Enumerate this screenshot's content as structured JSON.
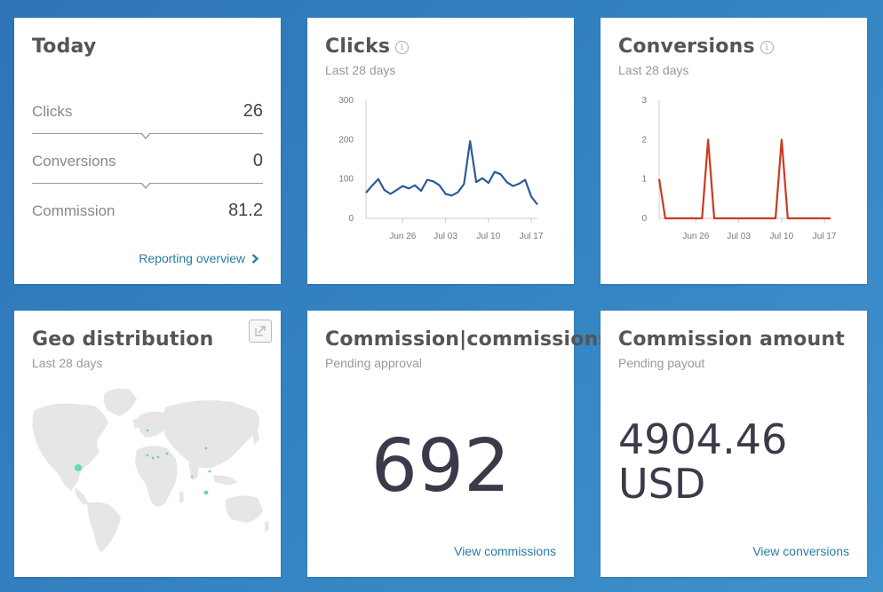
{
  "today": {
    "title": "Today",
    "rows": [
      {
        "label": "Clicks",
        "value": "26"
      },
      {
        "label": "Conversions",
        "value": "0"
      },
      {
        "label": "Commission",
        "value": "81.2"
      }
    ],
    "link": "Reporting overview",
    "link_icon": "chevron-right-icon"
  },
  "clicks": {
    "title": "Clicks",
    "subtitle": "Last 28 days",
    "info_icon": "info-icon"
  },
  "conversions": {
    "title": "Conversions",
    "subtitle": "Last 28 days",
    "info_icon": "info-icon"
  },
  "geo": {
    "title": "Geo distribution",
    "subtitle": "Last 28 days",
    "expand_icon": "expand-icon"
  },
  "commissions": {
    "title": "Commission|commissions",
    "subtitle": "Pending approval",
    "value": "692",
    "link": "View commissions"
  },
  "amount": {
    "title": "Commission amount",
    "subtitle": "Pending payout",
    "value_line1": "4904.46",
    "value_line2": "USD",
    "link": "View conversions"
  },
  "colors": {
    "clicks_line": "#2d5a96",
    "conversions_line": "#cc3a1f",
    "link": "#2a7ba7",
    "map_land": "#e6e6e6",
    "map_dot": "#5fe0a9"
  },
  "chart_data": [
    {
      "type": "line",
      "title": "Clicks",
      "x": [
        "Jun 20",
        "Jun 21",
        "Jun 22",
        "Jun 23",
        "Jun 24",
        "Jun 25",
        "Jun 26",
        "Jun 27",
        "Jun 28",
        "Jun 29",
        "Jun 30",
        "Jul 01",
        "Jul 02",
        "Jul 03",
        "Jul 04",
        "Jul 05",
        "Jul 06",
        "Jul 07",
        "Jul 08",
        "Jul 09",
        "Jul 10",
        "Jul 11",
        "Jul 12",
        "Jul 13",
        "Jul 14",
        "Jul 15",
        "Jul 16",
        "Jul 17",
        "Jul 18"
      ],
      "series": [
        {
          "values": [
            65,
            83,
            100,
            72,
            62,
            72,
            82,
            76,
            84,
            70,
            98,
            94,
            84,
            62,
            58,
            66,
            87,
            196,
            92,
            102,
            90,
            118,
            112,
            92,
            82,
            88,
            98,
            55,
            35
          ]
        }
      ],
      "x_ticks": [
        "Jun 26",
        "Jul 03",
        "Jul 10",
        "Jul 17"
      ],
      "y_ticks": [
        "0",
        "100",
        "200",
        "300"
      ],
      "ylim": [
        0,
        300
      ]
    },
    {
      "type": "line",
      "title": "Conversions",
      "x": [
        "Jun 20",
        "Jun 21",
        "Jun 22",
        "Jun 23",
        "Jun 24",
        "Jun 25",
        "Jun 26",
        "Jun 27",
        "Jun 28",
        "Jun 29",
        "Jun 30",
        "Jul 01",
        "Jul 02",
        "Jul 03",
        "Jul 04",
        "Jul 05",
        "Jul 06",
        "Jul 07",
        "Jul 08",
        "Jul 09",
        "Jul 10",
        "Jul 11",
        "Jul 12",
        "Jul 13",
        "Jul 14",
        "Jul 15",
        "Jul 16",
        "Jul 17",
        "Jul 18"
      ],
      "series": [
        {
          "values": [
            1,
            0,
            0,
            0,
            0,
            0,
            0,
            0,
            2,
            0,
            0,
            0,
            0,
            0,
            0,
            0,
            0,
            0,
            0,
            0,
            2,
            0,
            0,
            0,
            0,
            0,
            0,
            0,
            0
          ]
        }
      ],
      "x_ticks": [
        "Jun 26",
        "Jul 03",
        "Jul 10",
        "Jul 17"
      ],
      "y_ticks": [
        "0",
        "1",
        "2",
        "3"
      ],
      "ylim": [
        0,
        3
      ]
    }
  ]
}
